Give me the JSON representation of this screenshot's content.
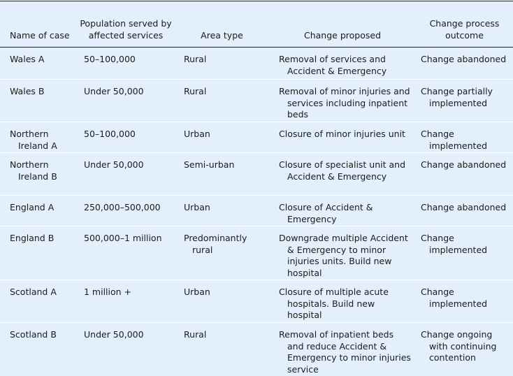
{
  "table": {
    "header": [
      "Name of case",
      "Population served by affected services",
      "Area type",
      "Change proposed",
      "Change process outcome"
    ],
    "rows": [
      [
        "Wales A",
        "50–100,000",
        "Rural",
        "Removal of services and Accident & Emergency",
        "Change abandoned"
      ],
      [
        "Wales B",
        "Under 50,000",
        "Rural",
        "Removal of minor injuries and services including inpatient beds",
        "Change partially implemented"
      ],
      [
        "Northern Ireland A",
        "50–100,000",
        "Urban",
        "Closure of minor injuries unit",
        "Change implemented"
      ],
      [
        "Northern Ireland B",
        "Under 50,000",
        "Semi-urban",
        "Closure of specialist unit and Accident & Emergency",
        "Change abandoned"
      ],
      [
        "England A",
        "250,000–500,000",
        "Urban",
        "Closure of Accident & Emergency",
        "Change abandoned"
      ],
      [
        "England B",
        "500,000–1 million",
        "Predominantly rural",
        "Downgrade multiple Accident & Emergency to minor injuries units. Build new hospital",
        "Change implemented"
      ],
      [
        "Scotland A",
        "1 million +",
        "Urban",
        "Closure of multiple acute hospitals. Build new hospital",
        "Change implemented"
      ],
      [
        "Scotland B",
        "Under 50,000",
        "Rural",
        "Removal of inpatient beds and reduce Accident & Emergency to minor injuries service",
        "Change ongoing with continuing contention"
      ]
    ]
  }
}
